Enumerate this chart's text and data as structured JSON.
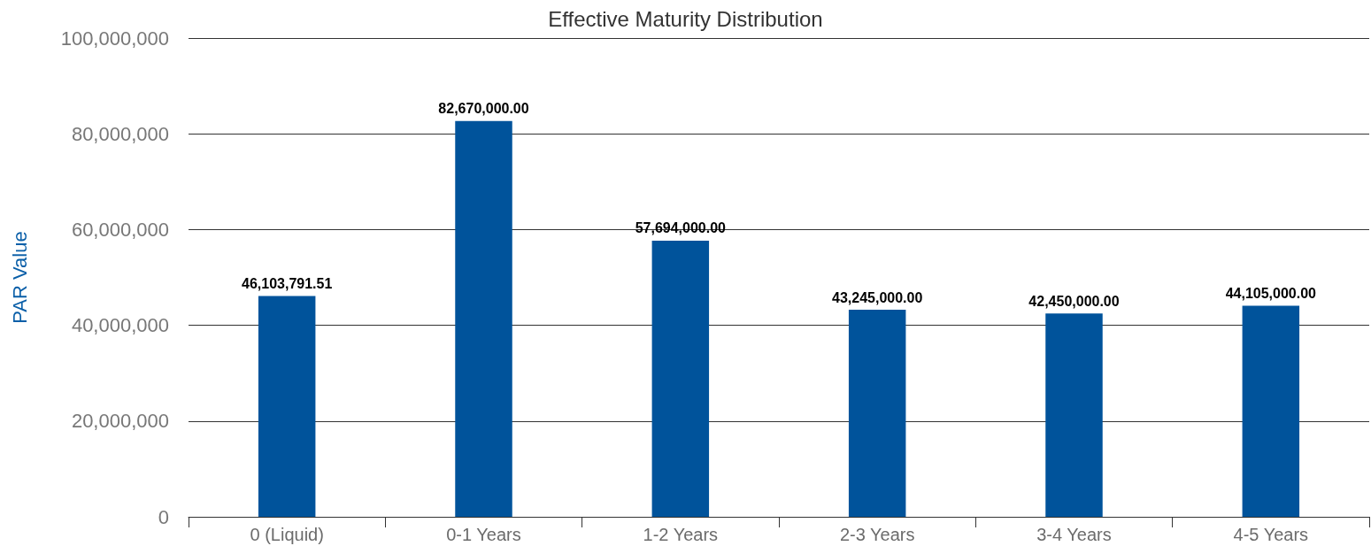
{
  "chart_data": {
    "type": "bar",
    "title": "Effective Maturity Distribution",
    "ylabel": "PAR Value",
    "categories": [
      "0 (Liquid)",
      "0-1 Years",
      "1-2 Years",
      "2-3 Years",
      "3-4 Years",
      "4-5 Years"
    ],
    "values": [
      46103791.51,
      82670000.0,
      57694000.0,
      43245000.0,
      42450000.0,
      44105000.0
    ],
    "color": "#00539b",
    "ylim": [
      0,
      100000000
    ],
    "yticks": [
      {
        "value": 0,
        "label": "0"
      },
      {
        "value": 20000000,
        "label": "20,000,000"
      },
      {
        "value": 40000000,
        "label": "40,000,000"
      },
      {
        "value": 60000000,
        "label": "60,000,000"
      },
      {
        "value": 80000000,
        "label": "80,000,000"
      },
      {
        "value": 100000000,
        "label": "100,000,000"
      }
    ],
    "value_labels": [
      "46,103,791.51",
      "82,670,000.00",
      "57,694,000.00",
      "43,245,000.00",
      "42,450,000.00",
      "44,105,000.00"
    ],
    "grid": "y"
  }
}
